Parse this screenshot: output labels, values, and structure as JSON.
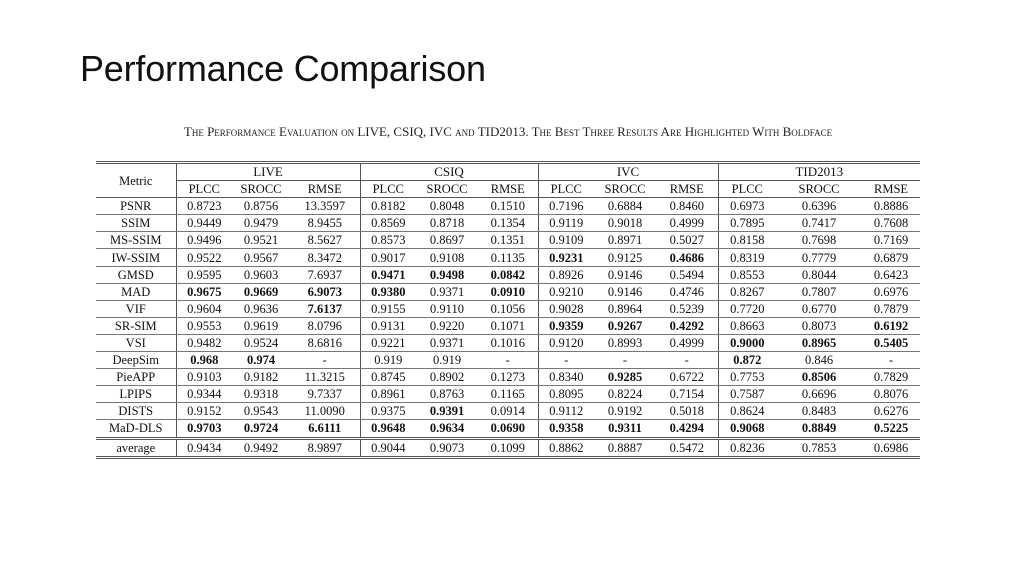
{
  "slide": {
    "title": "Performance Comparison",
    "caption": "The Performance Evaluation on LIVE, CSIQ, IVC and TID2013. The Best Three Results Are Highlighted With Boldface"
  },
  "table": {
    "metric_header": "Metric",
    "groups": [
      "LIVE",
      "CSIQ",
      "IVC",
      "TID2013"
    ],
    "subheaders": [
      "PLCC",
      "SROCC",
      "RMSE"
    ],
    "rows": [
      {
        "metric": "PSNR",
        "cells": [
          {
            "v": "0.8723",
            "b": false
          },
          {
            "v": "0.8756",
            "b": false
          },
          {
            "v": "13.3597",
            "b": false
          },
          {
            "v": "0.8182",
            "b": false
          },
          {
            "v": "0.8048",
            "b": false
          },
          {
            "v": "0.1510",
            "b": false
          },
          {
            "v": "0.7196",
            "b": false
          },
          {
            "v": "0.6884",
            "b": false
          },
          {
            "v": "0.8460",
            "b": false
          },
          {
            "v": "0.6973",
            "b": false
          },
          {
            "v": "0.6396",
            "b": false
          },
          {
            "v": "0.8886",
            "b": false
          }
        ]
      },
      {
        "metric": "SSIM",
        "cells": [
          {
            "v": "0.9449",
            "b": false
          },
          {
            "v": "0.9479",
            "b": false
          },
          {
            "v": "8.9455",
            "b": false
          },
          {
            "v": "0.8569",
            "b": false
          },
          {
            "v": "0.8718",
            "b": false
          },
          {
            "v": "0.1354",
            "b": false
          },
          {
            "v": "0.9119",
            "b": false
          },
          {
            "v": "0.9018",
            "b": false
          },
          {
            "v": "0.4999",
            "b": false
          },
          {
            "v": "0.7895",
            "b": false
          },
          {
            "v": "0.7417",
            "b": false
          },
          {
            "v": "0.7608",
            "b": false
          }
        ]
      },
      {
        "metric": "MS-SSIM",
        "cells": [
          {
            "v": "0.9496",
            "b": false
          },
          {
            "v": "0.9521",
            "b": false
          },
          {
            "v": "8.5627",
            "b": false
          },
          {
            "v": "0.8573",
            "b": false
          },
          {
            "v": "0.8697",
            "b": false
          },
          {
            "v": "0.1351",
            "b": false
          },
          {
            "v": "0.9109",
            "b": false
          },
          {
            "v": "0.8971",
            "b": false
          },
          {
            "v": "0.5027",
            "b": false
          },
          {
            "v": "0.8158",
            "b": false
          },
          {
            "v": "0.7698",
            "b": false
          },
          {
            "v": "0.7169",
            "b": false
          }
        ]
      },
      {
        "metric": "IW-SSIM",
        "cells": [
          {
            "v": "0.9522",
            "b": false
          },
          {
            "v": "0.9567",
            "b": false
          },
          {
            "v": "8.3472",
            "b": false
          },
          {
            "v": "0.9017",
            "b": false
          },
          {
            "v": "0.9108",
            "b": false
          },
          {
            "v": "0.1135",
            "b": false
          },
          {
            "v": "0.9231",
            "b": true
          },
          {
            "v": "0.9125",
            "b": false
          },
          {
            "v": "0.4686",
            "b": true
          },
          {
            "v": "0.8319",
            "b": false
          },
          {
            "v": "0.7779",
            "b": false
          },
          {
            "v": "0.6879",
            "b": false
          }
        ]
      },
      {
        "metric": "GMSD",
        "cells": [
          {
            "v": "0.9595",
            "b": false
          },
          {
            "v": "0.9603",
            "b": false
          },
          {
            "v": "7.6937",
            "b": false
          },
          {
            "v": "0.9471",
            "b": true
          },
          {
            "v": "0.9498",
            "b": true
          },
          {
            "v": "0.0842",
            "b": true
          },
          {
            "v": "0.8926",
            "b": false
          },
          {
            "v": "0.9146",
            "b": false
          },
          {
            "v": "0.5494",
            "b": false
          },
          {
            "v": "0.8553",
            "b": false
          },
          {
            "v": "0.8044",
            "b": false
          },
          {
            "v": "0.6423",
            "b": false
          }
        ]
      },
      {
        "metric": "MAD",
        "cells": [
          {
            "v": "0.9675",
            "b": true
          },
          {
            "v": "0.9669",
            "b": true
          },
          {
            "v": "6.9073",
            "b": true
          },
          {
            "v": "0.9380",
            "b": true
          },
          {
            "v": "0.9371",
            "b": false
          },
          {
            "v": "0.0910",
            "b": true
          },
          {
            "v": "0.9210",
            "b": false
          },
          {
            "v": "0.9146",
            "b": false
          },
          {
            "v": "0.4746",
            "b": false
          },
          {
            "v": "0.8267",
            "b": false
          },
          {
            "v": "0.7807",
            "b": false
          },
          {
            "v": "0.6976",
            "b": false
          }
        ]
      },
      {
        "metric": "VIF",
        "cells": [
          {
            "v": "0.9604",
            "b": false
          },
          {
            "v": "0.9636",
            "b": false
          },
          {
            "v": "7.6137",
            "b": true
          },
          {
            "v": "0.9155",
            "b": false
          },
          {
            "v": "0.9110",
            "b": false
          },
          {
            "v": "0.1056",
            "b": false
          },
          {
            "v": "0.9028",
            "b": false
          },
          {
            "v": "0.8964",
            "b": false
          },
          {
            "v": "0.5239",
            "b": false
          },
          {
            "v": "0.7720",
            "b": false
          },
          {
            "v": "0.6770",
            "b": false
          },
          {
            "v": "0.7879",
            "b": false
          }
        ]
      },
      {
        "metric": "SR-SIM",
        "cells": [
          {
            "v": "0.9553",
            "b": false
          },
          {
            "v": "0.9619",
            "b": false
          },
          {
            "v": "8.0796",
            "b": false
          },
          {
            "v": "0.9131",
            "b": false
          },
          {
            "v": "0.9220",
            "b": false
          },
          {
            "v": "0.1071",
            "b": false
          },
          {
            "v": "0.9359",
            "b": true
          },
          {
            "v": "0.9267",
            "b": true
          },
          {
            "v": "0.4292",
            "b": true
          },
          {
            "v": "0.8663",
            "b": false
          },
          {
            "v": "0.8073",
            "b": false
          },
          {
            "v": "0.6192",
            "b": true
          }
        ]
      },
      {
        "metric": "VSI",
        "cells": [
          {
            "v": "0.9482",
            "b": false
          },
          {
            "v": "0.9524",
            "b": false
          },
          {
            "v": "8.6816",
            "b": false
          },
          {
            "v": "0.9221",
            "b": false
          },
          {
            "v": "0.9371",
            "b": false
          },
          {
            "v": "0.1016",
            "b": false
          },
          {
            "v": "0.9120",
            "b": false
          },
          {
            "v": "0.8993",
            "b": false
          },
          {
            "v": "0.4999",
            "b": false
          },
          {
            "v": "0.9000",
            "b": true
          },
          {
            "v": "0.8965",
            "b": true
          },
          {
            "v": "0.5405",
            "b": true
          }
        ]
      },
      {
        "metric": "DeepSim",
        "cells": [
          {
            "v": "0.968",
            "b": true
          },
          {
            "v": "0.974",
            "b": true
          },
          {
            "v": "-",
            "b": false
          },
          {
            "v": "0.919",
            "b": false
          },
          {
            "v": "0.919",
            "b": false
          },
          {
            "v": "-",
            "b": false
          },
          {
            "v": "-",
            "b": false
          },
          {
            "v": "-",
            "b": false
          },
          {
            "v": "-",
            "b": false
          },
          {
            "v": "0.872",
            "b": true
          },
          {
            "v": "0.846",
            "b": false
          },
          {
            "v": "-",
            "b": false
          }
        ]
      },
      {
        "metric": "PieAPP",
        "cells": [
          {
            "v": "0.9103",
            "b": false
          },
          {
            "v": "0.9182",
            "b": false
          },
          {
            "v": "11.3215",
            "b": false
          },
          {
            "v": "0.8745",
            "b": false
          },
          {
            "v": "0.8902",
            "b": false
          },
          {
            "v": "0.1273",
            "b": false
          },
          {
            "v": "0.8340",
            "b": false
          },
          {
            "v": "0.9285",
            "b": true
          },
          {
            "v": "0.6722",
            "b": false
          },
          {
            "v": "0.7753",
            "b": false
          },
          {
            "v": "0.8506",
            "b": true
          },
          {
            "v": "0.7829",
            "b": false
          }
        ]
      },
      {
        "metric": "LPIPS",
        "cells": [
          {
            "v": "0.9344",
            "b": false
          },
          {
            "v": "0.9318",
            "b": false
          },
          {
            "v": "9.7337",
            "b": false
          },
          {
            "v": "0.8961",
            "b": false
          },
          {
            "v": "0.8763",
            "b": false
          },
          {
            "v": "0.1165",
            "b": false
          },
          {
            "v": "0.8095",
            "b": false
          },
          {
            "v": "0.8224",
            "b": false
          },
          {
            "v": "0.7154",
            "b": false
          },
          {
            "v": "0.7587",
            "b": false
          },
          {
            "v": "0.6696",
            "b": false
          },
          {
            "v": "0.8076",
            "b": false
          }
        ]
      },
      {
        "metric": "DISTS",
        "cells": [
          {
            "v": "0.9152",
            "b": false
          },
          {
            "v": "0.9543",
            "b": false
          },
          {
            "v": "11.0090",
            "b": false
          },
          {
            "v": "0.9375",
            "b": false
          },
          {
            "v": "0.9391",
            "b": true
          },
          {
            "v": "0.0914",
            "b": false
          },
          {
            "v": "0.9112",
            "b": false
          },
          {
            "v": "0.9192",
            "b": false
          },
          {
            "v": "0.5018",
            "b": false
          },
          {
            "v": "0.8624",
            "b": false
          },
          {
            "v": "0.8483",
            "b": false
          },
          {
            "v": "0.6276",
            "b": false
          }
        ]
      },
      {
        "metric": "MaD-DLS",
        "cells": [
          {
            "v": "0.9703",
            "b": true
          },
          {
            "v": "0.9724",
            "b": true
          },
          {
            "v": "6.6111",
            "b": true
          },
          {
            "v": "0.9648",
            "b": true
          },
          {
            "v": "0.9634",
            "b": true
          },
          {
            "v": "0.0690",
            "b": true
          },
          {
            "v": "0.9358",
            "b": true
          },
          {
            "v": "0.9311",
            "b": true
          },
          {
            "v": "0.4294",
            "b": true
          },
          {
            "v": "0.9068",
            "b": true
          },
          {
            "v": "0.8849",
            "b": true
          },
          {
            "v": "0.5225",
            "b": true
          }
        ]
      }
    ],
    "average": {
      "metric": "average",
      "cells": [
        {
          "v": "0.9434",
          "b": false
        },
        {
          "v": "0.9492",
          "b": false
        },
        {
          "v": "8.9897",
          "b": false
        },
        {
          "v": "0.9044",
          "b": false
        },
        {
          "v": "0.9073",
          "b": false
        },
        {
          "v": "0.1099",
          "b": false
        },
        {
          "v": "0.8862",
          "b": false
        },
        {
          "v": "0.8887",
          "b": false
        },
        {
          "v": "0.5472",
          "b": false
        },
        {
          "v": "0.8236",
          "b": false
        },
        {
          "v": "0.7853",
          "b": false
        },
        {
          "v": "0.6986",
          "b": false
        }
      ]
    }
  }
}
